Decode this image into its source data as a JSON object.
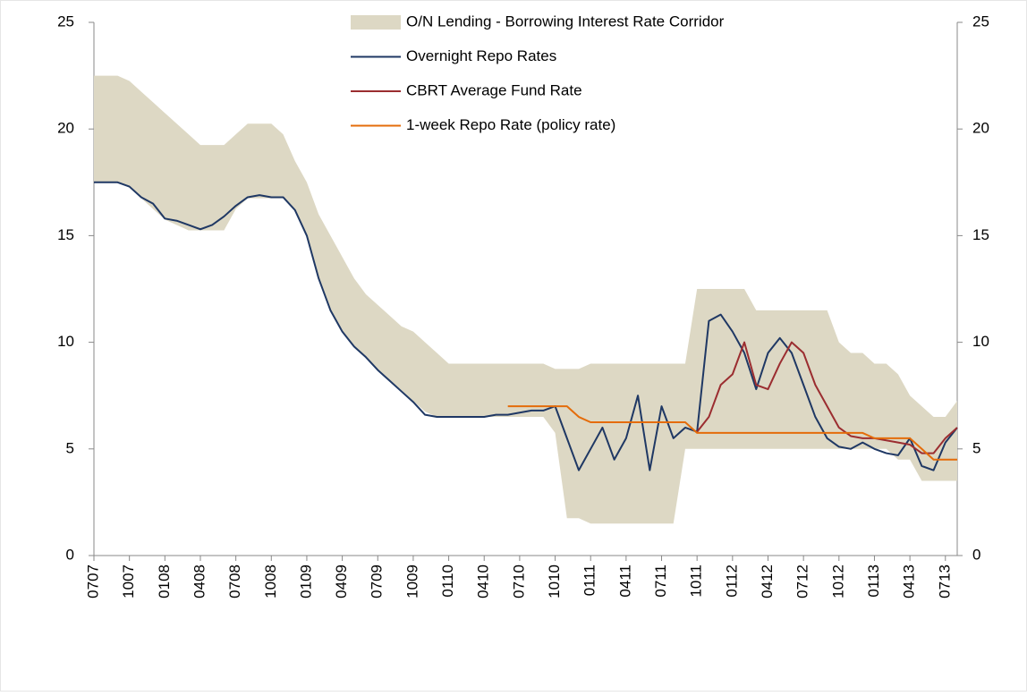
{
  "chart_data": {
    "type": "line",
    "categories": [
      "0707",
      null,
      null,
      "1007",
      null,
      null,
      "0108",
      null,
      null,
      "0408",
      null,
      null,
      "0708",
      null,
      null,
      "1008",
      null,
      null,
      "0109",
      null,
      null,
      "0409",
      null,
      null,
      "0709",
      null,
      null,
      "1009",
      null,
      null,
      "0110",
      null,
      null,
      "0410",
      null,
      null,
      "0710",
      null,
      null,
      "1010",
      null,
      null,
      "0111",
      null,
      null,
      "0411",
      null,
      null,
      "0711",
      null,
      null,
      "1011",
      null,
      null,
      "0112",
      null,
      null,
      "0412",
      null,
      null,
      "0712",
      null,
      null,
      "1012",
      null,
      null,
      "0113",
      null,
      null,
      "0413",
      null,
      null,
      "0713",
      null
    ],
    "series": [
      {
        "name": "O/N Lending - Borrowing Interest Rate Corridor",
        "color": "#ddd8c4",
        "high": [
          22.5,
          22.5,
          22.5,
          22.25,
          21.75,
          21.25,
          20.75,
          20.25,
          19.75,
          19.25,
          19.25,
          19.25,
          19.75,
          20.25,
          20.25,
          20.25,
          19.75,
          18.5,
          17.5,
          16,
          15,
          14,
          13,
          12.25,
          11.75,
          11.25,
          10.75,
          10.5,
          10,
          9.5,
          9,
          9,
          9,
          9,
          9,
          9,
          9,
          9,
          9,
          8.75,
          8.75,
          8.75,
          9,
          9,
          9,
          9,
          9,
          9,
          9,
          9,
          9,
          12.5,
          12.5,
          12.5,
          12.5,
          12.5,
          11.5,
          11.5,
          11.5,
          11.5,
          11.5,
          11.5,
          11.5,
          10,
          9.5,
          9.5,
          9,
          9,
          8.5,
          7.5,
          7,
          6.5,
          6.5,
          7.25
        ],
        "low": [
          17.5,
          17.5,
          17.5,
          17.25,
          16.75,
          16.25,
          15.75,
          15.5,
          15.25,
          15.25,
          15.25,
          15.25,
          16.25,
          16.75,
          16.75,
          16.75,
          16.75,
          16.25,
          15,
          13,
          11.5,
          10.5,
          9.75,
          9.25,
          8.75,
          8.25,
          7.75,
          7.25,
          6.75,
          6.5,
          6.5,
          6.5,
          6.5,
          6.5,
          6.5,
          6.5,
          6.5,
          6.5,
          6.5,
          5.75,
          1.75,
          1.75,
          1.5,
          1.5,
          1.5,
          1.5,
          1.5,
          1.5,
          1.5,
          1.5,
          5,
          5,
          5,
          5,
          5,
          5,
          5,
          5,
          5,
          5,
          5,
          5,
          5,
          5,
          5,
          5,
          5,
          5,
          4.5,
          4.5,
          3.5,
          3.5,
          3.5,
          3.5
        ]
      },
      {
        "name": "Overnight Repo Rates",
        "color": "#1f3864",
        "values": [
          17.5,
          17.5,
          17.5,
          17.3,
          16.8,
          16.5,
          15.8,
          15.7,
          15.5,
          15.3,
          15.5,
          15.9,
          16.4,
          16.8,
          16.9,
          16.8,
          16.8,
          16.2,
          15,
          13,
          11.5,
          10.5,
          9.8,
          9.3,
          8.7,
          8.2,
          7.7,
          7.2,
          6.6,
          6.5,
          6.5,
          6.5,
          6.5,
          6.5,
          6.6,
          6.6,
          6.7,
          6.8,
          6.8,
          7,
          5.5,
          4,
          5,
          6,
          4.5,
          5.5,
          7.5,
          4,
          7,
          5.5,
          6,
          5.8,
          11,
          11.3,
          10.5,
          9.5,
          7.8,
          9.5,
          10.2,
          9.5,
          8,
          6.5,
          5.5,
          5.1,
          5,
          5.3,
          5,
          4.8,
          4.7,
          5.5,
          4.2,
          4,
          5.3,
          6
        ]
      },
      {
        "name": "CBRT Average Fund Rate",
        "color": "#9b2d30",
        "values": [
          null,
          null,
          null,
          null,
          null,
          null,
          null,
          null,
          null,
          null,
          null,
          null,
          null,
          null,
          null,
          null,
          null,
          null,
          null,
          null,
          null,
          null,
          null,
          null,
          null,
          null,
          null,
          null,
          null,
          null,
          null,
          null,
          null,
          null,
          null,
          null,
          null,
          null,
          null,
          null,
          null,
          null,
          null,
          null,
          null,
          null,
          null,
          null,
          null,
          null,
          null,
          5.8,
          6.5,
          8,
          8.5,
          10,
          8,
          7.8,
          9,
          10,
          9.5,
          8,
          7,
          6,
          5.6,
          5.5,
          5.5,
          5.4,
          5.3,
          5.2,
          4.8,
          4.8,
          5.5,
          6
        ]
      },
      {
        "name": "1-week Repo Rate (policy rate)",
        "color": "#e46c0a",
        "values": [
          null,
          null,
          null,
          null,
          null,
          null,
          null,
          null,
          null,
          null,
          null,
          null,
          null,
          null,
          null,
          null,
          null,
          null,
          null,
          null,
          null,
          null,
          null,
          null,
          null,
          null,
          null,
          null,
          null,
          null,
          null,
          null,
          null,
          null,
          null,
          7,
          7,
          7,
          7,
          7,
          7,
          6.5,
          6.25,
          6.25,
          6.25,
          6.25,
          6.25,
          6.25,
          6.25,
          6.25,
          6.25,
          5.75,
          5.75,
          5.75,
          5.75,
          5.75,
          5.75,
          5.75,
          5.75,
          5.75,
          5.75,
          5.75,
          5.75,
          5.75,
          5.75,
          5.75,
          5.5,
          5.5,
          5.5,
          5.5,
          5,
          4.5,
          4.5,
          4.5
        ]
      }
    ],
    "ylim": [
      0,
      25
    ],
    "yticks": [
      0,
      5,
      10,
      15,
      20,
      25
    ],
    "y2lim": [
      0,
      25
    ],
    "y2ticks": [
      0,
      5,
      10,
      15,
      20,
      25
    ],
    "legend": "upper center"
  }
}
